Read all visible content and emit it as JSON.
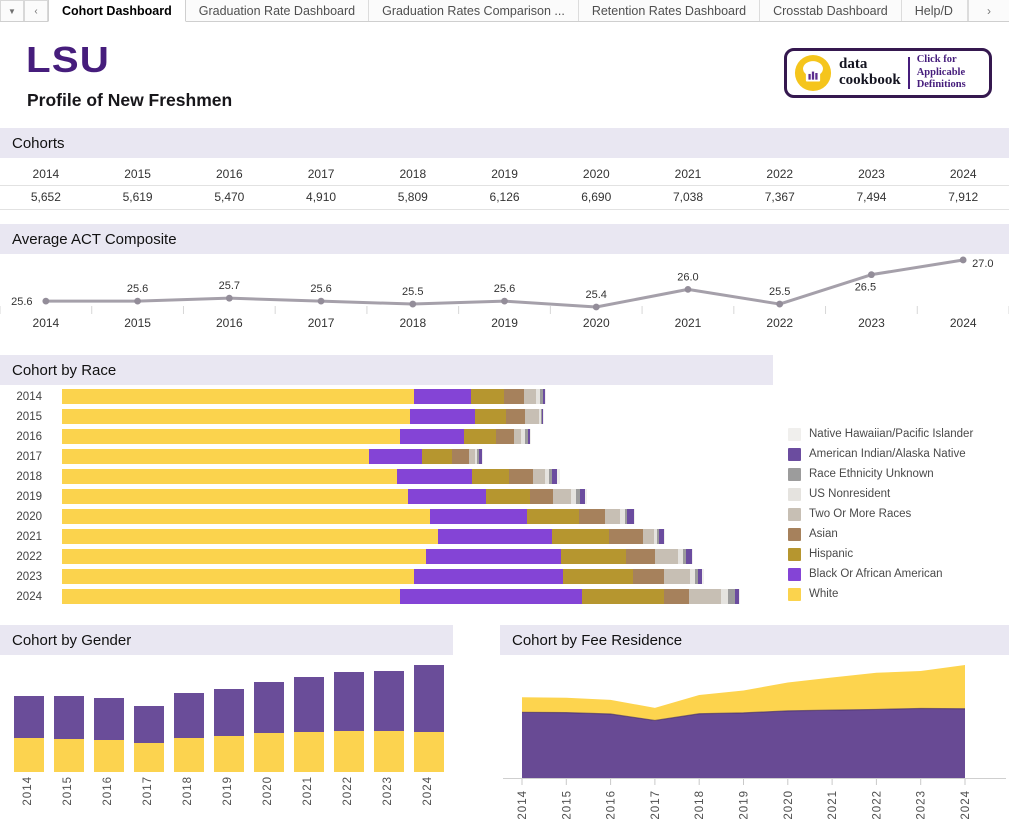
{
  "tab_bar": {
    "dropdown_icon": "▼",
    "scroll_left_icon": "‹",
    "scroll_right_icon": "›",
    "tabs": [
      {
        "label": "Cohort Dashboard",
        "active": true,
        "truncated": false
      },
      {
        "label": "Graduation Rate Dashboard",
        "active": false,
        "truncated": false
      },
      {
        "label": "Graduation Rates Comparison ...",
        "active": false,
        "truncated": false
      },
      {
        "label": "Retention Rates Dashboard",
        "active": false,
        "truncated": false
      },
      {
        "label": "Crosstab Dashboard",
        "active": false,
        "truncated": false
      },
      {
        "label": "Help/D",
        "active": false,
        "truncated": true
      }
    ]
  },
  "header": {
    "logo_text": "LSU",
    "title": "Profile of New Freshmen",
    "badge": {
      "icon": "chef-hat-with-bar-chart",
      "brand_top": "data",
      "brand_bottom": "cookbook",
      "note_line1": "Click for Applicable",
      "note_line2": "Definitions"
    }
  },
  "sections": {
    "cohorts": {
      "title": "Cohorts"
    },
    "act": {
      "title": "Average ACT Composite"
    },
    "race": {
      "title": "Cohort by Race"
    },
    "gender": {
      "title": "Cohort by Gender"
    },
    "residence": {
      "title": "Cohort by Fee Residence"
    }
  },
  "colors": {
    "lsu_purple": "#461D7C",
    "section_header_bg": "#E9E7F2",
    "badge_border": "#35184f",
    "badge_icon_gold": "#F5C51C",
    "act_line": "#A5A0AA",
    "act_point": "#938D99",
    "gold": "#FBD34D",
    "race_purple": "#8444D6",
    "gender_purple": "#6A4D99",
    "residence_purple": "#684A94",
    "residence_gold": "#FDD44E"
  },
  "chart_data": [
    {
      "id": "cohorts",
      "type": "table",
      "title": "Cohorts",
      "columns": [
        "2014",
        "2015",
        "2016",
        "2017",
        "2018",
        "2019",
        "2020",
        "2021",
        "2022",
        "2023",
        "2024"
      ],
      "rows": [
        [
          "5,652",
          "5,619",
          "5,470",
          "4,910",
          "5,809",
          "6,126",
          "6,690",
          "7,038",
          "7,367",
          "7,494",
          "7,912"
        ]
      ]
    },
    {
      "id": "act",
      "type": "line",
      "title": "Average ACT Composite",
      "x": [
        "2014",
        "2015",
        "2016",
        "2017",
        "2018",
        "2019",
        "2020",
        "2021",
        "2022",
        "2023",
        "2024"
      ],
      "values": [
        25.6,
        25.6,
        25.7,
        25.6,
        25.5,
        25.6,
        25.4,
        26.0,
        25.5,
        26.5,
        27.0
      ],
      "point_labels": [
        "25.6",
        "25.6",
        "25.7",
        "25.6",
        "25.5",
        "25.6",
        "25.4",
        "26.0",
        "25.5",
        "26.5",
        "27.0"
      ],
      "ylim": [
        25.2,
        27.2
      ],
      "grid": false,
      "legend": "none"
    },
    {
      "id": "race",
      "type": "bar",
      "orientation": "horizontal",
      "stacked": true,
      "title": "Cohort by Race",
      "estimated": true,
      "categories": [
        "2014",
        "2015",
        "2016",
        "2017",
        "2018",
        "2019",
        "2020",
        "2021",
        "2022",
        "2023",
        "2024"
      ],
      "series": [
        {
          "name": "White",
          "color": "#FBD34D",
          "values": [
            4113,
            4060,
            3944,
            3583,
            3904,
            4040,
            4300,
            4384,
            4250,
            4110,
            3944
          ]
        },
        {
          "name": "Black Or African American",
          "color": "#8444D6",
          "values": [
            665,
            758,
            747,
            613,
            875,
            910,
            1132,
            1330,
            1575,
            1739,
            2124
          ]
        },
        {
          "name": "Hispanic",
          "color": "#B6962F",
          "values": [
            385,
            362,
            379,
            350,
            438,
            508,
            601,
            665,
            759,
            817,
            957
          ]
        },
        {
          "name": "Asian",
          "color": "#A6815C",
          "values": [
            233,
            222,
            204,
            204,
            280,
            274,
            309,
            397,
            333,
            362,
            292
          ]
        },
        {
          "name": "Two Or More Races",
          "color": "#C7BFB4",
          "values": [
            140,
            163,
            88,
            70,
            140,
            210,
            175,
            128,
            274,
            303,
            373
          ]
        },
        {
          "name": "US Nonresident",
          "color": "#E5E3DF",
          "values": [
            47,
            23,
            45,
            27,
            46,
            60,
            50,
            35,
            55,
            55,
            85
          ]
        },
        {
          "name": "Race Ethnicity Unknown",
          "color": "#9C9C9C",
          "values": [
            35,
            12,
            31,
            20,
            30,
            39,
            32,
            23,
            39,
            38,
            75
          ]
        },
        {
          "name": "American Indian/Alaska Native",
          "color": "#6B4C9F",
          "values": [
            23,
            12,
            22,
            33,
            66,
            60,
            71,
            61,
            62,
            50,
            47
          ]
        },
        {
          "name": "Native Hawaiian/Pacific Islander",
          "color": "#F0EFED",
          "values": [
            11,
            7,
            10,
            10,
            30,
            25,
            20,
            15,
            20,
            20,
            15
          ]
        }
      ],
      "legend_position": "right",
      "legend_order_top_to_bottom": [
        "Native Hawaiian/Pacific Islander",
        "American Indian/Alaska Native",
        "Race Ethnicity Unknown",
        "US Nonresident",
        "Two Or More Races",
        "Asian",
        "Hispanic",
        "Black Or African American",
        "White"
      ]
    },
    {
      "id": "gender",
      "type": "bar",
      "orientation": "vertical",
      "stacked": true,
      "title": "Cohort by Gender",
      "estimated": true,
      "categories": [
        "2014",
        "2015",
        "2016",
        "2017",
        "2018",
        "2019",
        "2020",
        "2021",
        "2022",
        "2023",
        "2024"
      ],
      "series": [
        {
          "name": "Gold (bottom segment)",
          "color": "#FCD34F",
          "values": [
            2540,
            2470,
            2400,
            2130,
            2500,
            2660,
            2850,
            2950,
            3000,
            3030,
            2980
          ]
        },
        {
          "name": "Purple (top segment)",
          "color": "#6A4D99",
          "values": [
            3112,
            3149,
            3070,
            2780,
            3309,
            3466,
            3840,
            4088,
            4367,
            4464,
            4932
          ]
        }
      ],
      "legend": "none"
    },
    {
      "id": "residence",
      "type": "area",
      "stacked": true,
      "title": "Cohort by Fee Residence",
      "estimated": true,
      "x": [
        "2014",
        "2015",
        "2016",
        "2017",
        "2018",
        "2019",
        "2020",
        "2021",
        "2022",
        "2023",
        "2024"
      ],
      "series": [
        {
          "name": "Purple (bottom area)",
          "color": "#684A94",
          "values": [
            4600,
            4580,
            4480,
            4030,
            4500,
            4560,
            4700,
            4750,
            4800,
            4870,
            4850
          ]
        },
        {
          "name": "Gold (top area)",
          "color": "#FDD44E",
          "values": [
            1052,
            1039,
            990,
            880,
            1309,
            1566,
            1990,
            2288,
            2567,
            2624,
            3062
          ]
        }
      ],
      "legend": "none"
    }
  ]
}
